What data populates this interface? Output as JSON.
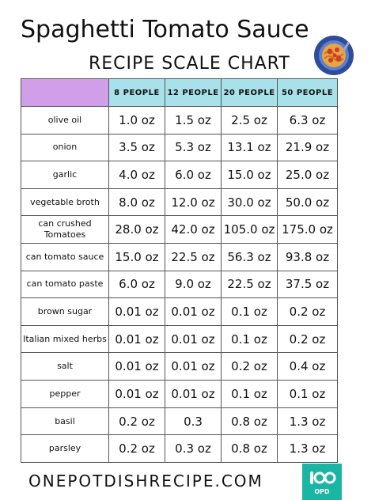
{
  "header": {
    "title": "Spaghetti Tomato Sauce",
    "subtitle": "RECIPE SCALE CHART",
    "plate_icon": "spaghetti-plate-icon"
  },
  "table": {
    "columns": [
      "8 PEOPLE",
      "12 PEOPLE",
      "20 PEOPLE",
      "50 PEOPLE"
    ],
    "rows": [
      {
        "name": "olive oil",
        "values": [
          "1.0 oz",
          "1.5 oz",
          "2.5 oz",
          "6.3 oz"
        ]
      },
      {
        "name": "onion",
        "values": [
          "3.5 oz",
          "5.3 oz",
          "13.1 oz",
          "21.9 oz"
        ]
      },
      {
        "name": "garlic",
        "values": [
          "4.0 oz",
          "6.0 oz",
          "15.0 oz",
          "25.0 oz"
        ]
      },
      {
        "name": "vegetable broth",
        "values": [
          "8.0 oz",
          "12.0 oz",
          "30.0 oz",
          "50.0 oz"
        ]
      },
      {
        "name": "can crushed Tomatoes",
        "values": [
          "28.0 oz",
          "42.0 oz",
          "105.0 oz",
          "175.0 oz"
        ]
      },
      {
        "name": "can tomato sauce",
        "values": [
          "15.0 oz",
          "22.5 oz",
          "56.3 oz",
          "93.8 oz"
        ]
      },
      {
        "name": "can tomato paste",
        "values": [
          "6.0 oz",
          "9.0 oz",
          "22.5 oz",
          "37.5 oz"
        ]
      },
      {
        "name": "brown sugar",
        "values": [
          "0.01 oz",
          "0.01 oz",
          "0.1 oz",
          "0.2 oz"
        ]
      },
      {
        "name": "Italian mixed herbs",
        "values": [
          "0.01 oz",
          "0.01 oz",
          "0.1 oz",
          "0.2 oz"
        ]
      },
      {
        "name": "salt",
        "values": [
          "0.01 oz",
          "0.01 oz",
          "0.2 oz",
          "0.4 oz"
        ]
      },
      {
        "name": "pepper",
        "values": [
          "0.01 oz",
          "0.01 oz",
          "0.1 oz",
          "0.1 oz"
        ]
      },
      {
        "name": "basil",
        "values": [
          "0.2 oz",
          "0.3",
          "0.8 oz",
          "1.3 oz"
        ]
      },
      {
        "name": "parsley",
        "values": [
          "0.2 oz",
          "0.3 oz",
          "0.8 oz",
          "1.3 oz"
        ]
      }
    ]
  },
  "footer": {
    "website": "ONEPOTDISHRECIPE.COM",
    "logo_text": "OPD"
  },
  "colors": {
    "header_purple": "#d19ee8",
    "header_cyan": "#a8e1ea",
    "logo_teal": "#1bb5a3"
  }
}
